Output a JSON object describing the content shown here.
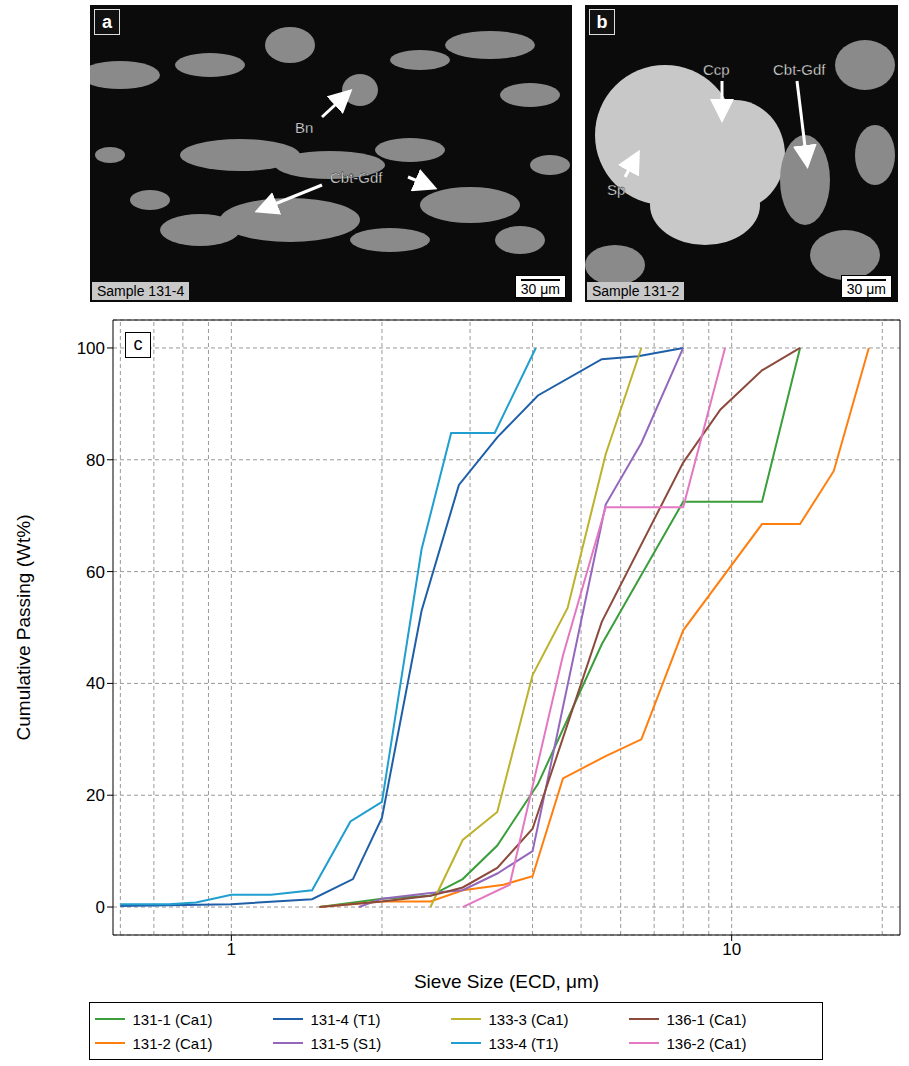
{
  "panels": [
    {
      "letter": "a",
      "sample": "Sample 131-4",
      "scale_bar": "30 μm",
      "labels": [
        "Bn",
        "Cbt-Gdf"
      ]
    },
    {
      "letter": "b",
      "sample": "Sample 131-2",
      "scale_bar": "30 μm",
      "labels": [
        "Ccp",
        "Sp",
        "Cbt-Gdf"
      ]
    }
  ],
  "chart_data": {
    "panel": "c",
    "type": "line",
    "xlabel": "Sieve Size (ECD, μm)",
    "ylabel": "Cumulative Passing (Wt%)",
    "log": "x",
    "xlim": [
      0.58,
      21.7
    ],
    "ylim": [
      -5,
      105
    ],
    "xticks": [
      1,
      10
    ],
    "minor_xticks": [
      0.6,
      0.7,
      0.8,
      0.9,
      2,
      3,
      4,
      5,
      6,
      7,
      8,
      9,
      20
    ],
    "yticks": [
      0,
      20,
      40,
      60,
      80,
      100
    ],
    "grid": true,
    "legend": "bottom",
    "series": [
      {
        "name": "131-1 (Ca1)",
        "color": "#3a9e3a",
        "x": [
          1.5,
          2.0,
          2.5,
          2.9,
          3.4,
          4.1,
          5.5,
          8.0,
          11.5,
          13.7
        ],
        "values": [
          0,
          1.5,
          2,
          5,
          11,
          22,
          47,
          72.5,
          72.5,
          100
        ]
      },
      {
        "name": "131-2 (Ca1)",
        "color": "#ff7f0e",
        "x": [
          1.5,
          2.0,
          2.5,
          2.9,
          3.5,
          4.0,
          4.6,
          5.6,
          6.6,
          8.0,
          11.5,
          13.7,
          16,
          18.8
        ],
        "values": [
          0,
          1,
          1,
          3,
          4,
          5.5,
          23,
          27,
          30,
          49.5,
          68.5,
          68.5,
          78,
          100
        ]
      },
      {
        "name": "131-4 (T1)",
        "color": "#1f5fa8",
        "x": [
          0.6,
          1.0,
          1.45,
          1.75,
          2.0,
          2.4,
          2.85,
          3.4,
          4.1,
          5.5,
          6.5,
          8.0
        ],
        "values": [
          0.2,
          0.5,
          1.4,
          5,
          16,
          53,
          75.5,
          84,
          91.5,
          98,
          98.5,
          100
        ]
      },
      {
        "name": "131-5 (S1)",
        "color": "#9467bd",
        "x": [
          1.8,
          2.0,
          2.5,
          2.9,
          3.4,
          4.0,
          5.6,
          6.6,
          8.0
        ],
        "values": [
          0,
          1.5,
          2.5,
          3,
          6,
          10,
          72,
          83,
          100
        ]
      },
      {
        "name": "133-3 (Ca1)",
        "color": "#bcb22c",
        "x": [
          2.5,
          2.9,
          3.4,
          4.0,
          4.7,
          5.6,
          6.6
        ],
        "values": [
          0,
          12,
          17,
          41.5,
          53.5,
          81,
          100
        ]
      },
      {
        "name": "133-4 (T1)",
        "color": "#1f9ecf",
        "x": [
          0.6,
          0.75,
          0.85,
          1.0,
          1.2,
          1.45,
          1.73,
          2.0,
          2.4,
          2.75,
          3.36,
          4.06
        ],
        "values": [
          0.5,
          0.5,
          0.8,
          2.2,
          2.2,
          3,
          15.3,
          18.8,
          64,
          84.8,
          84.8,
          100
        ]
      },
      {
        "name": "136-1 (Ca1)",
        "color": "#8c4a3c",
        "x": [
          1.5,
          2.0,
          2.5,
          2.9,
          3.4,
          4.0,
          5.5,
          8.0,
          9.5,
          11.5,
          13.7
        ],
        "values": [
          0,
          1,
          2,
          3.5,
          7,
          14,
          51,
          79.5,
          89,
          96,
          100
        ]
      },
      {
        "name": "136-2 (Ca1)",
        "color": "#e377c2",
        "x": [
          2.9,
          3.6,
          4.6,
          5.6,
          8.0,
          9.7
        ],
        "values": [
          0,
          4,
          45,
          71.5,
          71.5,
          100
        ]
      }
    ]
  }
}
